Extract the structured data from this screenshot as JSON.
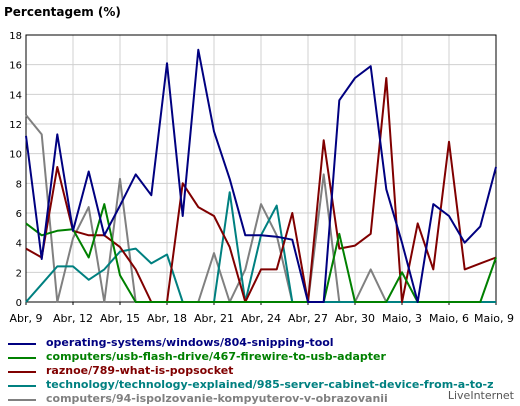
{
  "credit": "LiveInternet",
  "chart_data": {
    "type": "line",
    "title": "Percentagem (%)",
    "xlabel": "",
    "ylabel": "",
    "ylim": [
      0,
      18
    ],
    "yticks": [
      0,
      2,
      4,
      6,
      8,
      10,
      12,
      14,
      16,
      18
    ],
    "grid": true,
    "legend_position": "bottom",
    "x_tick_labels": [
      "Abr, 9",
      "Abr, 12",
      "Abr, 15",
      "Abr, 18",
      "Abr, 21",
      "Abr, 24",
      "Abr, 27",
      "Abr, 30",
      "Maio, 3",
      "Maio, 6",
      "Maio, 9"
    ],
    "x": [
      "Abr, 9",
      "Abr, 10",
      "Abr, 11",
      "Abr, 12",
      "Abr, 13",
      "Abr, 14",
      "Abr, 15",
      "Abr, 16",
      "Abr, 17",
      "Abr, 18",
      "Abr, 19",
      "Abr, 20",
      "Abr, 21",
      "Abr, 22",
      "Abr, 23",
      "Abr, 24",
      "Abr, 25",
      "Abr, 26",
      "Abr, 27",
      "Abr, 28",
      "Abr, 29",
      "Abr, 30",
      "Maio, 1",
      "Maio, 2",
      "Maio, 3",
      "Maio, 4",
      "Maio, 5",
      "Maio, 6",
      "Maio, 7",
      "Maio, 8",
      "Maio, 9"
    ],
    "series": [
      {
        "name": "operating-systems/windows/804-snipping-tool",
        "color": "#000080",
        "values": [
          11.2,
          2.9,
          11.3,
          4.8,
          8.8,
          4.5,
          6.5,
          8.6,
          7.2,
          16.1,
          5.8,
          17.0,
          11.5,
          8.3,
          4.5,
          4.5,
          4.4,
          4.2,
          0.0,
          0.0,
          13.6,
          15.1,
          15.9,
          7.6,
          4.0,
          0.0,
          6.6,
          5.8,
          4.0,
          5.1,
          9.1
        ]
      },
      {
        "name": "computers/usb-flash-drive/467-firewire-to-usb-adapter",
        "color": "#008000",
        "values": [
          5.3,
          4.5,
          4.8,
          4.9,
          3.0,
          6.6,
          1.8,
          0.0,
          0.0,
          0.0,
          0.0,
          0.0,
          0.0,
          0.0,
          0.0,
          0.0,
          0.0,
          0.0,
          0.0,
          0.0,
          4.6,
          0.0,
          0.0,
          0.0,
          2.0,
          0.0,
          0.0,
          0.0,
          0.0,
          0.0,
          3.0
        ]
      },
      {
        "name": "raznoe/789-what-is-popsocket",
        "color": "#800000",
        "values": [
          3.6,
          3.0,
          9.1,
          4.8,
          4.5,
          4.5,
          3.7,
          2.2,
          0.0,
          0.0,
          8.0,
          6.4,
          5.8,
          3.7,
          0.0,
          2.2,
          2.2,
          6.0,
          0.0,
          10.9,
          3.6,
          3.8,
          4.6,
          15.1,
          0.0,
          5.3,
          2.2,
          10.8,
          2.2,
          2.6,
          3.0
        ]
      },
      {
        "name": "technology/technology-explained/985-server-cabinet-device-from-a-to-z",
        "color": "#008080",
        "values": [
          0.0,
          1.2,
          2.4,
          2.4,
          1.5,
          2.2,
          3.4,
          3.6,
          2.6,
          3.2,
          0.0,
          0.0,
          0.0,
          7.4,
          0.0,
          4.5,
          6.5,
          0.0,
          0.0,
          0.0,
          0.0,
          0.0,
          0.0,
          0.0,
          0.0,
          0.0,
          0.0,
          0.0,
          0.0,
          0.0,
          0.0
        ]
      },
      {
        "name": "computers/94-ispolzovanie-kompyuterov-v-obrazovanii",
        "color": "#808080",
        "values": [
          12.6,
          11.3,
          0.0,
          4.3,
          6.4,
          0.0,
          8.3,
          0.0,
          0.0,
          0.0,
          0.0,
          0.0,
          3.3,
          0.0,
          2.2,
          6.6,
          4.5,
          0.0,
          0.0,
          8.6,
          0.0,
          0.0,
          2.2,
          0.0,
          0.0,
          0.0,
          0.0,
          0.0,
          0.0,
          0.0,
          0.0
        ]
      }
    ]
  }
}
